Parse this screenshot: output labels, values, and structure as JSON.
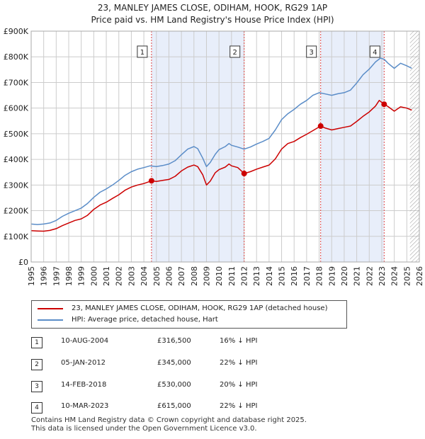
{
  "title": "23, MANLEY JAMES CLOSE, ODIHAM, HOOK, RG29 1AP",
  "subtitle": "Price paid vs. HM Land Registry's House Price Index (HPI)",
  "colors": {
    "property": "#cc0000",
    "hpi": "#5b8dc8",
    "shade": "#e8eefa",
    "grid": "#cccccc"
  },
  "chart_data": {
    "type": "line",
    "title": "23, MANLEY JAMES CLOSE, ODIHAM, HOOK, RG29 1AP",
    "subtitle": "Price paid vs. HM Land Registry's House Price Index (HPI)",
    "xlim": [
      1995,
      2026
    ],
    "ylim": [
      0,
      900000
    ],
    "x_ticks": [
      1995,
      1996,
      1997,
      1998,
      1999,
      2000,
      2001,
      2002,
      2003,
      2004,
      2005,
      2006,
      2007,
      2008,
      2009,
      2010,
      2011,
      2012,
      2013,
      2014,
      2015,
      2016,
      2017,
      2018,
      2019,
      2020,
      2021,
      2022,
      2023,
      2024,
      2025,
      2026
    ],
    "y_ticks": [
      {
        "value": 0,
        "label": "£0"
      },
      {
        "value": 100000,
        "label": "£100K"
      },
      {
        "value": 200000,
        "label": "£200K"
      },
      {
        "value": 300000,
        "label": "£300K"
      },
      {
        "value": 400000,
        "label": "£400K"
      },
      {
        "value": 500000,
        "label": "£500K"
      },
      {
        "value": 600000,
        "label": "£600K"
      },
      {
        "value": 700000,
        "label": "£700K"
      },
      {
        "value": 800000,
        "label": "£800K"
      },
      {
        "value": 900000,
        "label": "£900K"
      }
    ],
    "grid": true,
    "shaded_regions": [
      [
        2004.61,
        2012.01
      ],
      [
        2018.12,
        2023.19
      ]
    ],
    "future_hatch_start": 2025.25,
    "series": [
      {
        "name": "23, MANLEY JAMES CLOSE, ODIHAM, HOOK, RG29 1AP (detached house)",
        "color": "#cc0000",
        "points": [
          [
            1995.0,
            122000
          ],
          [
            1995.5,
            121000
          ],
          [
            1996.0,
            120000
          ],
          [
            1996.5,
            123000
          ],
          [
            1997.0,
            130000
          ],
          [
            1997.5,
            142000
          ],
          [
            1998.0,
            152000
          ],
          [
            1998.5,
            162000
          ],
          [
            1999.0,
            168000
          ],
          [
            1999.5,
            182000
          ],
          [
            2000.0,
            205000
          ],
          [
            2000.5,
            222000
          ],
          [
            2001.0,
            233000
          ],
          [
            2001.5,
            248000
          ],
          [
            2002.0,
            262000
          ],
          [
            2002.5,
            280000
          ],
          [
            2003.0,
            292000
          ],
          [
            2003.5,
            300000
          ],
          [
            2004.0,
            306000
          ],
          [
            2004.61,
            316500
          ],
          [
            2005.0,
            314000
          ],
          [
            2005.5,
            318000
          ],
          [
            2006.0,
            322000
          ],
          [
            2006.5,
            334000
          ],
          [
            2007.0,
            355000
          ],
          [
            2007.5,
            370000
          ],
          [
            2008.0,
            378000
          ],
          [
            2008.3,
            372000
          ],
          [
            2008.7,
            340000
          ],
          [
            2009.0,
            300000
          ],
          [
            2009.3,
            315000
          ],
          [
            2009.7,
            348000
          ],
          [
            2010.0,
            360000
          ],
          [
            2010.5,
            370000
          ],
          [
            2010.8,
            382000
          ],
          [
            2011.0,
            375000
          ],
          [
            2011.5,
            368000
          ],
          [
            2012.01,
            345000
          ],
          [
            2012.5,
            352000
          ],
          [
            2013.0,
            362000
          ],
          [
            2013.5,
            370000
          ],
          [
            2014.0,
            378000
          ],
          [
            2014.5,
            402000
          ],
          [
            2015.0,
            440000
          ],
          [
            2015.5,
            462000
          ],
          [
            2016.0,
            470000
          ],
          [
            2016.5,
            485000
          ],
          [
            2017.0,
            498000
          ],
          [
            2017.5,
            512000
          ],
          [
            2018.12,
            530000
          ],
          [
            2018.5,
            522000
          ],
          [
            2019.0,
            515000
          ],
          [
            2019.5,
            520000
          ],
          [
            2020.0,
            525000
          ],
          [
            2020.5,
            530000
          ],
          [
            2021.0,
            548000
          ],
          [
            2021.5,
            568000
          ],
          [
            2022.0,
            585000
          ],
          [
            2022.5,
            608000
          ],
          [
            2022.8,
            630000
          ],
          [
            2023.19,
            615000
          ],
          [
            2023.5,
            606000
          ],
          [
            2024.0,
            588000
          ],
          [
            2024.5,
            605000
          ],
          [
            2025.0,
            600000
          ],
          [
            2025.4,
            592000
          ]
        ]
      },
      {
        "name": "HPI: Average price, detached house, Hart",
        "color": "#5b8dc8",
        "points": [
          [
            1995.0,
            148000
          ],
          [
            1995.5,
            146000
          ],
          [
            1996.0,
            148000
          ],
          [
            1996.5,
            152000
          ],
          [
            1997.0,
            162000
          ],
          [
            1997.5,
            178000
          ],
          [
            1998.0,
            190000
          ],
          [
            1998.5,
            200000
          ],
          [
            1999.0,
            210000
          ],
          [
            1999.5,
            228000
          ],
          [
            2000.0,
            252000
          ],
          [
            2000.5,
            272000
          ],
          [
            2001.0,
            285000
          ],
          [
            2001.5,
            300000
          ],
          [
            2002.0,
            318000
          ],
          [
            2002.5,
            338000
          ],
          [
            2003.0,
            352000
          ],
          [
            2003.5,
            362000
          ],
          [
            2004.0,
            368000
          ],
          [
            2004.5,
            375000
          ],
          [
            2005.0,
            372000
          ],
          [
            2005.5,
            376000
          ],
          [
            2006.0,
            382000
          ],
          [
            2006.5,
            395000
          ],
          [
            2007.0,
            418000
          ],
          [
            2007.5,
            440000
          ],
          [
            2008.0,
            450000
          ],
          [
            2008.3,
            442000
          ],
          [
            2008.7,
            405000
          ],
          [
            2009.0,
            372000
          ],
          [
            2009.3,
            388000
          ],
          [
            2009.7,
            420000
          ],
          [
            2010.0,
            438000
          ],
          [
            2010.5,
            450000
          ],
          [
            2010.8,
            462000
          ],
          [
            2011.0,
            455000
          ],
          [
            2011.5,
            448000
          ],
          [
            2012.0,
            440000
          ],
          [
            2012.5,
            448000
          ],
          [
            2013.0,
            460000
          ],
          [
            2013.5,
            470000
          ],
          [
            2014.0,
            482000
          ],
          [
            2014.5,
            515000
          ],
          [
            2015.0,
            555000
          ],
          [
            2015.5,
            578000
          ],
          [
            2016.0,
            595000
          ],
          [
            2016.5,
            615000
          ],
          [
            2017.0,
            630000
          ],
          [
            2017.5,
            650000
          ],
          [
            2018.0,
            660000
          ],
          [
            2018.5,
            655000
          ],
          [
            2019.0,
            650000
          ],
          [
            2019.5,
            656000
          ],
          [
            2020.0,
            660000
          ],
          [
            2020.5,
            670000
          ],
          [
            2021.0,
            698000
          ],
          [
            2021.5,
            730000
          ],
          [
            2022.0,
            752000
          ],
          [
            2022.5,
            780000
          ],
          [
            2022.9,
            795000
          ],
          [
            2023.2,
            790000
          ],
          [
            2023.5,
            775000
          ],
          [
            2024.0,
            755000
          ],
          [
            2024.5,
            775000
          ],
          [
            2025.0,
            765000
          ],
          [
            2025.4,
            755000
          ]
        ]
      }
    ],
    "sales": [
      {
        "label": "1",
        "x": 2004.61,
        "y": 316500
      },
      {
        "label": "2",
        "x": 2012.01,
        "y": 345000
      },
      {
        "label": "3",
        "x": 2018.12,
        "y": 530000
      },
      {
        "label": "4",
        "x": 2023.19,
        "y": 615000
      }
    ],
    "marker_box_value": 820000
  },
  "legend": {
    "property": "23, MANLEY JAMES CLOSE, ODIHAM, HOOK, RG29 1AP (detached house)",
    "hpi": "HPI: Average price, detached house, Hart"
  },
  "transactions": [
    {
      "num": "1",
      "date": "10-AUG-2004",
      "price": "£316,500",
      "pct": "16% ↓ HPI"
    },
    {
      "num": "2",
      "date": "05-JAN-2012",
      "price": "£345,000",
      "pct": "22% ↓ HPI"
    },
    {
      "num": "3",
      "date": "14-FEB-2018",
      "price": "£530,000",
      "pct": "20% ↓ HPI"
    },
    {
      "num": "4",
      "date": "10-MAR-2023",
      "price": "£615,000",
      "pct": "22% ↓ HPI"
    }
  ],
  "footer": {
    "line1": "Contains HM Land Registry data © Crown copyright and database right 2025.",
    "line2": "This data is licensed under the Open Government Licence v3.0."
  }
}
